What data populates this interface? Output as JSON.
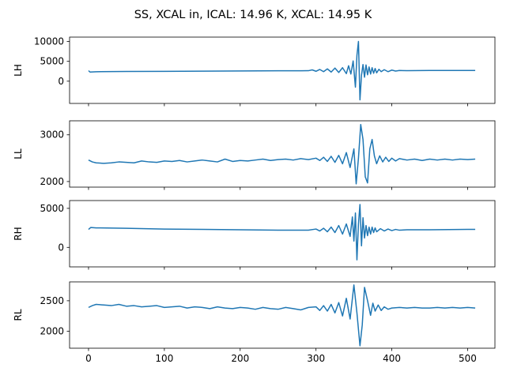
{
  "figure_title": "SS, XCAL in, ICAL: 14.96 K, XCAL: 14.95 K",
  "line_color": "#1f77b4",
  "chart_data": [
    {
      "type": "line",
      "title": "",
      "ylabel": "LH",
      "xlim": [
        -25,
        536
      ],
      "ylim": [
        -5600,
        11100
      ],
      "yticks": [
        0,
        5000,
        10000
      ],
      "ytick_labels": [
        "0",
        "5000",
        "10000"
      ],
      "xticks": [
        0,
        100,
        200,
        300,
        400,
        500
      ],
      "xtick_labels": [],
      "grid": false,
      "series": [
        {
          "x": [
            0,
            2,
            10,
            50,
            100,
            150,
            200,
            250,
            290,
            295,
            300,
            305,
            310,
            315,
            320,
            325,
            330,
            335,
            340,
            343,
            346,
            349,
            352,
            354,
            356,
            358,
            360,
            362,
            364,
            366,
            368,
            370,
            372,
            374,
            376,
            378,
            380,
            383,
            386,
            390,
            395,
            400,
            405,
            410,
            420,
            450,
            500,
            510
          ],
          "values": [
            2650,
            2300,
            2380,
            2450,
            2480,
            2530,
            2580,
            2620,
            2640,
            2850,
            2500,
            2950,
            2400,
            3100,
            2300,
            3300,
            2200,
            3400,
            1900,
            3900,
            1800,
            5100,
            -1500,
            6500,
            10000,
            -4700,
            1500,
            4200,
            1000,
            4100,
            1600,
            3600,
            1800,
            3400,
            2000,
            3200,
            2100,
            3000,
            2400,
            2900,
            2400,
            2800,
            2550,
            2700,
            2650,
            2700,
            2700,
            2700
          ]
        }
      ]
    },
    {
      "type": "line",
      "title": "",
      "ylabel": "LL",
      "xlim": [
        -25,
        536
      ],
      "ylim": [
        1880,
        3300
      ],
      "yticks": [
        2000,
        3000
      ],
      "ytick_labels": [
        "2000",
        "3000"
      ],
      "xticks": [
        0,
        100,
        200,
        300,
        400,
        500
      ],
      "xtick_labels": [],
      "grid": false,
      "series": [
        {
          "x": [
            0,
            5,
            10,
            20,
            30,
            40,
            50,
            60,
            70,
            80,
            90,
            100,
            110,
            120,
            130,
            140,
            150,
            160,
            170,
            180,
            190,
            200,
            210,
            220,
            230,
            240,
            250,
            260,
            270,
            280,
            290,
            300,
            305,
            310,
            315,
            320,
            325,
            330,
            335,
            340,
            345,
            350,
            353,
            356,
            359,
            362,
            365,
            368,
            371,
            374,
            377,
            380,
            384,
            388,
            392,
            396,
            400,
            405,
            410,
            420,
            430,
            440,
            450,
            460,
            470,
            480,
            490,
            500,
            510
          ],
          "values": [
            2460,
            2420,
            2400,
            2390,
            2400,
            2420,
            2410,
            2400,
            2440,
            2420,
            2410,
            2440,
            2430,
            2450,
            2420,
            2440,
            2460,
            2440,
            2420,
            2480,
            2430,
            2450,
            2440,
            2460,
            2480,
            2450,
            2470,
            2480,
            2460,
            2490,
            2470,
            2500,
            2450,
            2520,
            2430,
            2540,
            2410,
            2560,
            2380,
            2620,
            2300,
            2700,
            1950,
            2500,
            3220,
            2900,
            2100,
            1970,
            2700,
            2900,
            2550,
            2380,
            2550,
            2420,
            2520,
            2430,
            2500,
            2440,
            2490,
            2460,
            2480,
            2450,
            2480,
            2460,
            2480,
            2460,
            2480,
            2470,
            2480
          ]
        }
      ]
    },
    {
      "type": "line",
      "title": "",
      "ylabel": "RH",
      "xlim": [
        -25,
        536
      ],
      "ylim": [
        -2500,
        6000
      ],
      "yticks": [
        0,
        5000
      ],
      "ytick_labels": [
        "0",
        "5000"
      ],
      "xticks": [
        0,
        100,
        200,
        300,
        400,
        500
      ],
      "xtick_labels": [],
      "grid": false,
      "series": [
        {
          "x": [
            0,
            3,
            10,
            50,
            100,
            150,
            200,
            250,
            290,
            300,
            305,
            310,
            315,
            320,
            325,
            330,
            335,
            340,
            345,
            348,
            350,
            352,
            354,
            356,
            358,
            360,
            362,
            364,
            366,
            368,
            370,
            372,
            374,
            376,
            378,
            380,
            385,
            390,
            395,
            400,
            405,
            410,
            420,
            450,
            500,
            510
          ],
          "values": [
            2300,
            2550,
            2500,
            2450,
            2350,
            2300,
            2250,
            2200,
            2200,
            2350,
            2100,
            2450,
            2000,
            2600,
            1900,
            2800,
            1700,
            3000,
            1400,
            3900,
            800,
            4400,
            -1600,
            3000,
            5500,
            200,
            3800,
            1200,
            2800,
            1500,
            2600,
            1700,
            2600,
            1900,
            2500,
            2000,
            2400,
            2100,
            2350,
            2150,
            2300,
            2200,
            2250,
            2250,
            2300,
            2300
          ]
        }
      ]
    },
    {
      "type": "line",
      "title": "",
      "ylabel": "RL",
      "xlim": [
        -25,
        536
      ],
      "ylim": [
        1720,
        2810
      ],
      "yticks": [
        2000,
        2500
      ],
      "ytick_labels": [
        "2000",
        "2500"
      ],
      "xticks": [
        0,
        100,
        200,
        300,
        400,
        500
      ],
      "xtick_labels": [
        "0",
        "100",
        "200",
        "300",
        "400",
        "500"
      ],
      "grid": false,
      "series": [
        {
          "x": [
            0,
            5,
            10,
            20,
            30,
            40,
            50,
            60,
            70,
            80,
            90,
            100,
            110,
            120,
            130,
            140,
            150,
            160,
            170,
            180,
            190,
            200,
            210,
            220,
            230,
            240,
            250,
            260,
            270,
            280,
            290,
            300,
            305,
            310,
            315,
            320,
            325,
            330,
            335,
            340,
            345,
            350,
            354,
            358,
            361,
            364,
            368,
            372,
            375,
            378,
            382,
            386,
            390,
            395,
            400,
            410,
            420,
            430,
            440,
            450,
            460,
            470,
            480,
            490,
            500,
            510
          ],
          "values": [
            2390,
            2420,
            2440,
            2430,
            2420,
            2440,
            2410,
            2420,
            2400,
            2410,
            2420,
            2390,
            2400,
            2410,
            2380,
            2400,
            2390,
            2370,
            2400,
            2380,
            2370,
            2390,
            2380,
            2360,
            2390,
            2370,
            2360,
            2390,
            2370,
            2350,
            2390,
            2400,
            2340,
            2420,
            2330,
            2440,
            2300,
            2470,
            2250,
            2540,
            2200,
            2760,
            2300,
            1760,
            2100,
            2720,
            2500,
            2260,
            2460,
            2330,
            2430,
            2340,
            2400,
            2360,
            2380,
            2390,
            2380,
            2390,
            2380,
            2380,
            2390,
            2380,
            2390,
            2380,
            2390,
            2380
          ]
        }
      ]
    }
  ]
}
